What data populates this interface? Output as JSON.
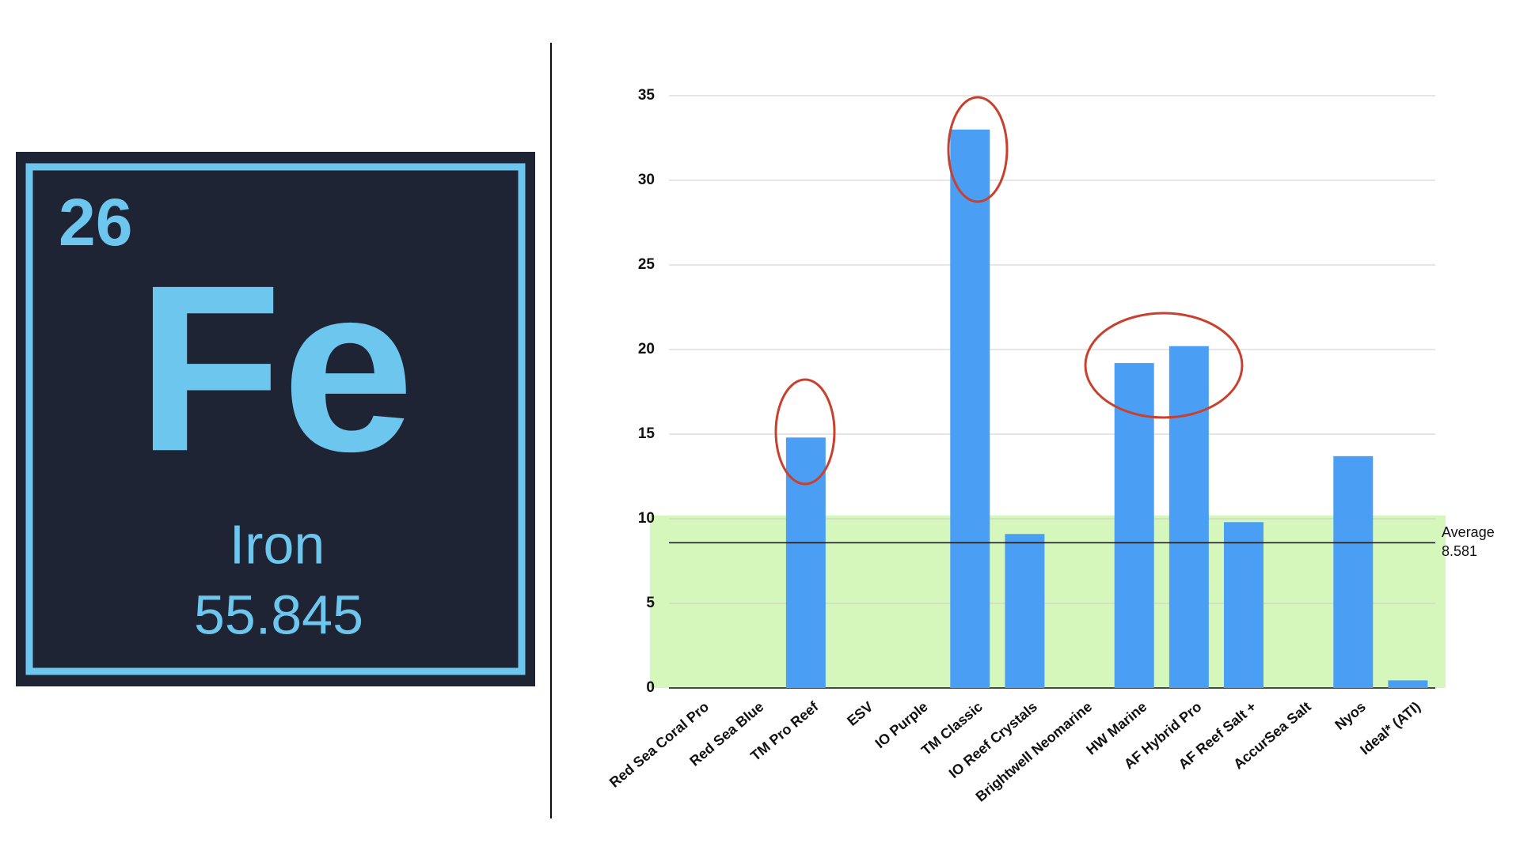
{
  "element": {
    "number": "26",
    "symbol": "Fe",
    "name": "Iron",
    "mass": "55.845"
  },
  "chart_data": {
    "type": "bar",
    "categories": [
      "Red Sea Coral Pro",
      "Red Sea Blue",
      "TM Pro Reef",
      "ESV",
      "IO Purple",
      "TM Classic",
      "IO Reef Crystals",
      "Brightwell Neomarine",
      "HW Marine",
      "AF Hybrid Pro",
      "AF Reef Salt +",
      "AccurSea Salt",
      "Nyos",
      "Ideal* (ATI)"
    ],
    "values": [
      0,
      0,
      14.8,
      0,
      0,
      33,
      9.1,
      0,
      19.2,
      20.2,
      9.8,
      0,
      13.7,
      0.45
    ],
    "color": "#4a9ff5",
    "ylim": [
      0,
      35
    ],
    "yticks": [
      0,
      5,
      10,
      15,
      20,
      25,
      30,
      35
    ],
    "grid": true,
    "average": {
      "label": "Average",
      "value": 8.581
    },
    "band": {
      "range": [
        0,
        10.2
      ],
      "color": "#d6f7bb"
    }
  }
}
